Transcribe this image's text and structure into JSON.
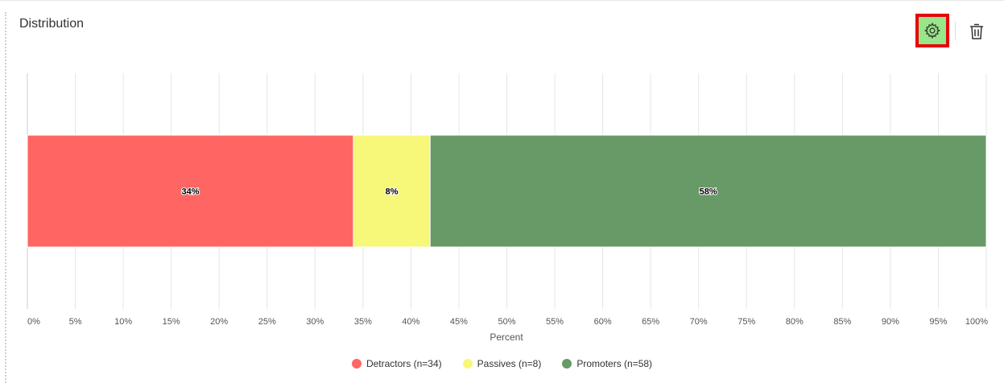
{
  "widget": {
    "title": "Distribution",
    "settings_icon": "gear-icon",
    "delete_icon": "trash-icon"
  },
  "chart_data": {
    "type": "bar",
    "orientation": "horizontal-stacked",
    "xlabel": "Percent",
    "xlim": [
      0,
      100
    ],
    "x_ticks": [
      "0%",
      "5%",
      "10%",
      "15%",
      "20%",
      "25%",
      "30%",
      "35%",
      "40%",
      "45%",
      "50%",
      "55%",
      "60%",
      "65%",
      "70%",
      "75%",
      "80%",
      "85%",
      "90%",
      "95%",
      "100%"
    ],
    "grid": true,
    "legend_position": "bottom",
    "series": [
      {
        "name": "Detractors (n=34)",
        "value": 34,
        "label": "34%",
        "color": "#ff6562"
      },
      {
        "name": "Passives (n=8)",
        "value": 8,
        "label": "8%",
        "color": "#f7f779"
      },
      {
        "name": "Promoters (n=58)",
        "value": 58,
        "label": "58%",
        "color": "#679a67"
      }
    ]
  }
}
